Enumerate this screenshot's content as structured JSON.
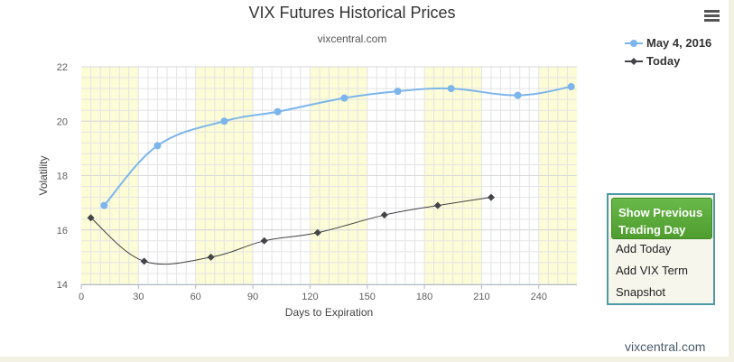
{
  "chart_data": {
    "type": "line",
    "title": "VIX Futures Historical Prices",
    "subtitle": "vixcentral.com",
    "xlabel": "Days to Expiration",
    "ylabel": "Volatility",
    "xlim": [
      0,
      260
    ],
    "ylim": [
      14,
      22
    ],
    "xticks": [
      0,
      30,
      60,
      90,
      120,
      150,
      180,
      210,
      240
    ],
    "yticks": [
      14,
      16,
      18,
      20,
      22
    ],
    "grid": true,
    "legend": "top-right",
    "shaded_bands": [
      [
        0,
        30
      ],
      [
        60,
        90
      ],
      [
        120,
        150
      ],
      [
        180,
        210
      ],
      [
        240,
        260
      ]
    ],
    "series": [
      {
        "name": "May 4, 2016",
        "color": "#7cb5ec",
        "marker": "circle",
        "x": [
          12,
          40,
          75,
          103,
          138,
          166,
          194,
          229,
          257
        ],
        "y": [
          16.9,
          19.1,
          20.0,
          20.35,
          20.85,
          21.1,
          21.2,
          20.95,
          21.27
        ]
      },
      {
        "name": "Today",
        "color": "#434348",
        "marker": "diamond",
        "x": [
          5,
          33,
          68,
          96,
          124,
          159,
          187,
          215
        ],
        "y": [
          16.45,
          14.85,
          15.0,
          15.6,
          15.9,
          16.55,
          16.9,
          17.2
        ]
      }
    ]
  },
  "legend": {
    "items": [
      "May 4, 2016",
      "Today"
    ]
  },
  "panel": {
    "show_previous": "Show Previous Trading Day",
    "add_today": "Add Today",
    "add_vix_term": "Add VIX Term",
    "snapshot": "Snapshot"
  },
  "watermark": "vixcentral.com"
}
